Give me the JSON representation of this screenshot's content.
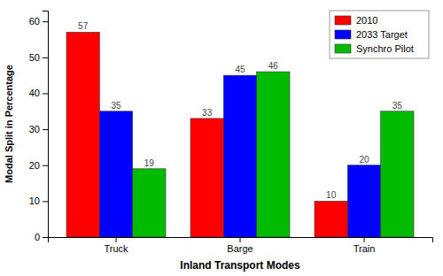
{
  "chart_data": {
    "type": "bar",
    "categories": [
      "Truck",
      "Barge",
      "Train"
    ],
    "series": [
      {
        "name": "2010",
        "color": "#ff0000",
        "values": [
          57,
          33,
          10
        ]
      },
      {
        "name": "2033 Target",
        "color": "#0000ff",
        "values": [
          35,
          45,
          20
        ]
      },
      {
        "name": "Synchro Pilot",
        "color": "#00bb00",
        "values": [
          19,
          46,
          35
        ]
      }
    ],
    "xlabel": "Inland Transport Modes",
    "ylabel": "Modal Split in Percentage",
    "ylim": [
      0,
      63
    ],
    "yticks": [
      0,
      10,
      20,
      30,
      40,
      50,
      60
    ],
    "grid": false,
    "legend": "upper right",
    "data_labels": true
  }
}
